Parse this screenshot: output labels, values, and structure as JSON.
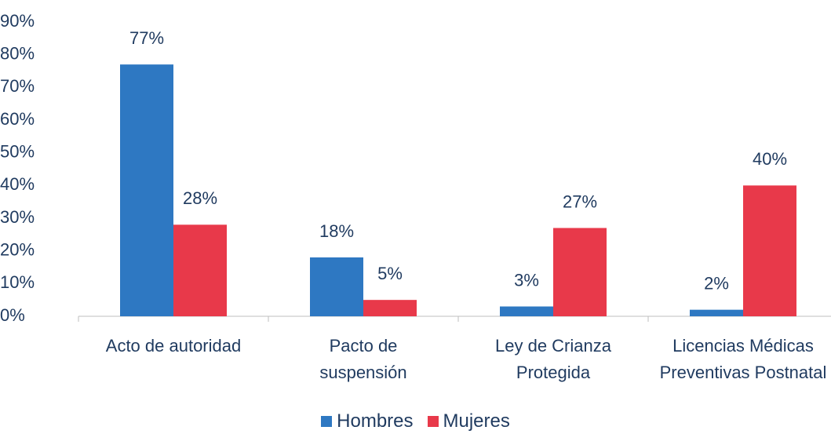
{
  "chart_data": {
    "type": "bar",
    "categories": [
      "Acto de autoridad",
      "Pacto de suspensión",
      "Ley de Crianza Protegida",
      "Licencias Médicas Preventivas Postnatal"
    ],
    "series": [
      {
        "name": "Hombres",
        "color": "#2e78c2",
        "values": [
          77,
          18,
          3,
          2
        ],
        "value_labels": [
          "77%",
          "18%",
          "3%",
          "2%"
        ]
      },
      {
        "name": "Mujeres",
        "color": "#e8394a",
        "values": [
          28,
          5,
          27,
          40
        ],
        "value_labels": [
          "28%",
          "5%",
          "27%",
          "40%"
        ]
      }
    ],
    "ylim": [
      0,
      90
    ],
    "yticks": [
      {
        "value": 0,
        "label": "0%"
      },
      {
        "value": 10,
        "label": "10%"
      },
      {
        "value": 20,
        "label": "20%"
      },
      {
        "value": 30,
        "label": "30%"
      },
      {
        "value": 40,
        "label": "40%"
      },
      {
        "value": 50,
        "label": "50%"
      },
      {
        "value": 60,
        "label": "60%"
      },
      {
        "value": 70,
        "label": "70%"
      },
      {
        "value": 80,
        "label": "80%"
      },
      {
        "value": 90,
        "label": "90%"
      }
    ],
    "grid": false,
    "legend": "bottom"
  }
}
